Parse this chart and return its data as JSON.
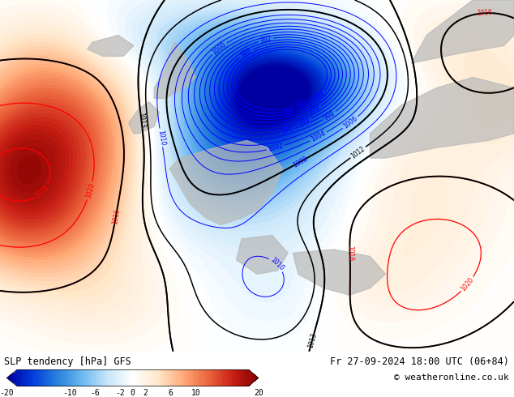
{
  "title_left": "SLP tendency [hPa] GFS",
  "title_right": "Fr 27-09-2024 18:00 UTC (06+84)",
  "copyright": "© weatheronline.co.uk",
  "colorbar_ticks": [
    -20,
    -10,
    -6,
    -2,
    0,
    2,
    6,
    10,
    20
  ],
  "colorbar_vmin": -20,
  "colorbar_vmax": 20,
  "bg_color": "#ffffff",
  "figsize": [
    6.34,
    4.9
  ],
  "dpi": 100
}
